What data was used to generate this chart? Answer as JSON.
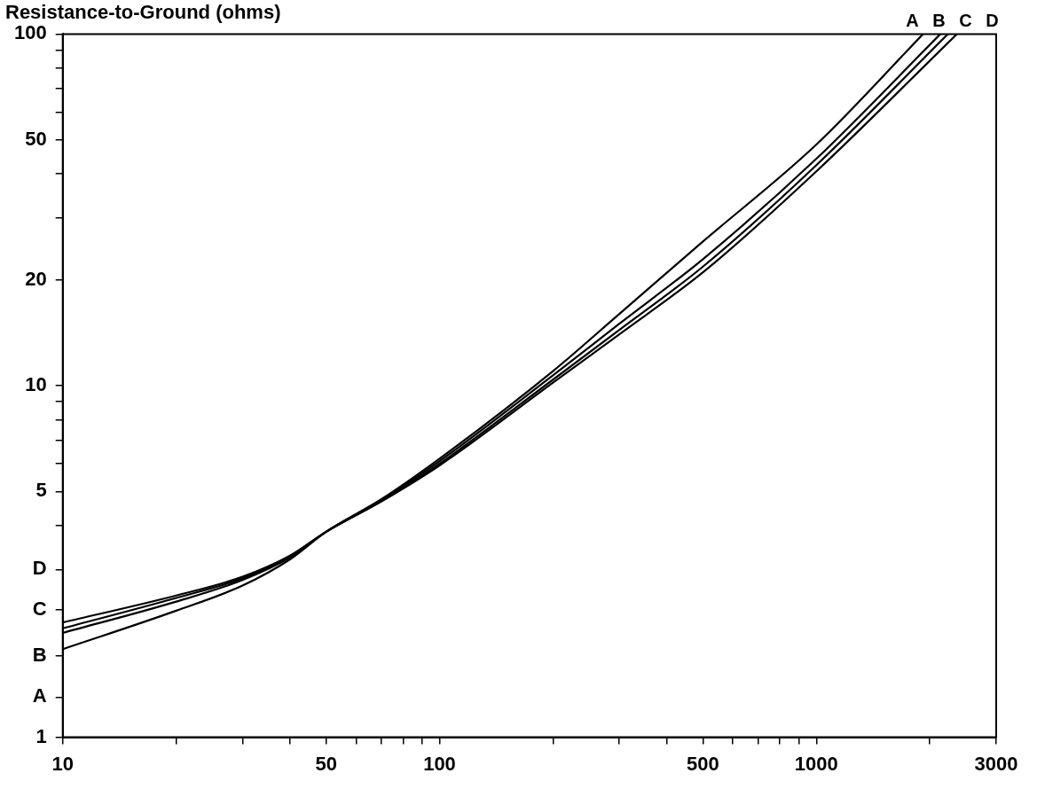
{
  "chart_data": {
    "type": "line",
    "title": "Resistance-to-Ground (ohms)",
    "log": "xy",
    "grid": false,
    "legend": false,
    "marker": "none",
    "line_style": "solid",
    "xlim": [
      10,
      3000
    ],
    "ylim": [
      1,
      100
    ],
    "xticks": [
      10,
      {
        "value": 20,
        "label": null
      },
      {
        "value": 30,
        "label": null
      },
      {
        "value": 40,
        "label": null
      },
      50,
      {
        "value": 60,
        "label": null
      },
      {
        "value": 70,
        "label": null
      },
      {
        "value": 80,
        "label": null
      },
      {
        "value": 90,
        "label": null
      },
      100,
      {
        "value": 200,
        "label": null
      },
      {
        "value": 300,
        "label": null
      },
      {
        "value": 400,
        "label": null
      },
      500,
      {
        "value": 600,
        "label": null
      },
      {
        "value": 700,
        "label": null
      },
      {
        "value": 800,
        "label": null
      },
      {
        "value": 900,
        "label": null
      },
      1000,
      {
        "value": 2000,
        "label": null
      },
      3000
    ],
    "yticks": [
      1,
      {
        "value": 1.3,
        "label": "A"
      },
      {
        "value": 1.7,
        "label": "B"
      },
      {
        "value": 2.3,
        "label": "C"
      },
      {
        "value": 3,
        "label": "D"
      },
      {
        "value": 4,
        "label": null
      },
      5,
      {
        "value": 6,
        "label": null
      },
      {
        "value": 7,
        "label": null
      },
      {
        "value": 8,
        "label": null
      },
      {
        "value": 9,
        "label": null
      },
      10,
      20,
      {
        "value": 30,
        "label": null
      },
      {
        "value": 40,
        "label": null
      },
      50,
      {
        "value": 60,
        "label": null
      },
      {
        "value": 70,
        "label": null
      },
      {
        "value": 80,
        "label": null
      },
      {
        "value": 90,
        "label": null
      },
      100
    ],
    "series": [
      {
        "name": "A",
        "color": "#000000",
        "x": [
          10,
          20,
          30,
          40,
          50,
          70,
          100,
          200,
          300,
          500,
          1000,
          1919
        ],
        "values": [
          1.78,
          2.29,
          2.7,
          3.2,
          3.84,
          4.75,
          6.2,
          11,
          16,
          25.7,
          48.5,
          100
        ]
      },
      {
        "name": "B",
        "color": "#000000",
        "x": [
          10,
          20,
          30,
          40,
          50,
          70,
          100,
          200,
          300,
          500,
          1000,
          2133
        ],
        "values": [
          1.98,
          2.43,
          2.8,
          3.24,
          3.84,
          4.72,
          6.1,
          10.7,
          15,
          22.9,
          44.2,
          100
        ]
      },
      {
        "name": "C",
        "color": "#000000",
        "x": [
          10,
          20,
          30,
          40,
          50,
          70,
          100,
          200,
          300,
          500,
          1000,
          2233
        ],
        "values": [
          2.04,
          2.49,
          2.83,
          3.26,
          3.84,
          4.7,
          6,
          10.4,
          14.4,
          21.8,
          42.4,
          100
        ]
      },
      {
        "name": "D",
        "color": "#000000",
        "x": [
          10,
          20,
          30,
          40,
          50,
          70,
          100,
          200,
          300,
          500,
          1000,
          2360
        ],
        "values": [
          2.12,
          2.53,
          2.86,
          3.28,
          3.84,
          4.68,
          5.93,
          10.2,
          14,
          21,
          40.7,
          100
        ]
      }
    ]
  }
}
